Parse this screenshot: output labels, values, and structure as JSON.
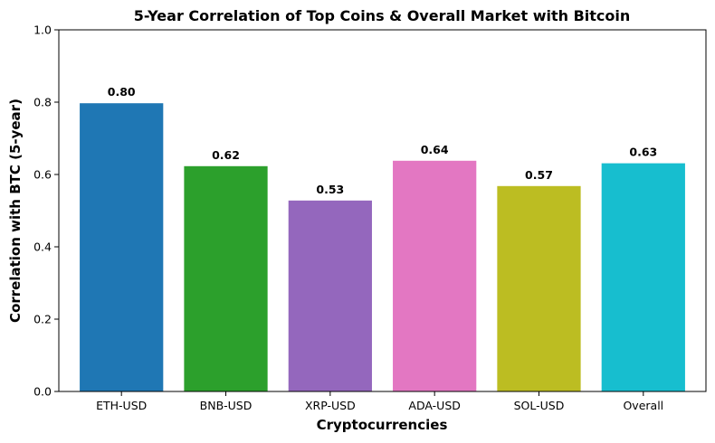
{
  "chart_data": {
    "type": "bar",
    "title": "5-Year Correlation of Top Coins & Overall Market with Bitcoin",
    "xlabel": "Cryptocurrencies",
    "ylabel": "Correlation with BTC (5-year)",
    "categories": [
      "ETH-USD",
      "BNB-USD",
      "XRP-USD",
      "ADA-USD",
      "SOL-USD",
      "Overall"
    ],
    "values": [
      0.797,
      0.623,
      0.528,
      0.638,
      0.568,
      0.631
    ],
    "value_labels": [
      "0.80",
      "0.62",
      "0.53",
      "0.64",
      "0.57",
      "0.63"
    ],
    "colors": [
      "#1f77b4",
      "#2ca02c",
      "#9467bd",
      "#e377c2",
      "#bcbd22",
      "#17becf"
    ],
    "ylim": [
      0,
      1.0
    ],
    "yticks": [
      0.0,
      0.2,
      0.4,
      0.6,
      0.8,
      1.0
    ],
    "ytick_labels": [
      "0.0",
      "0.2",
      "0.4",
      "0.6",
      "0.8",
      "1.0"
    ],
    "grid": false,
    "legend": "none"
  }
}
